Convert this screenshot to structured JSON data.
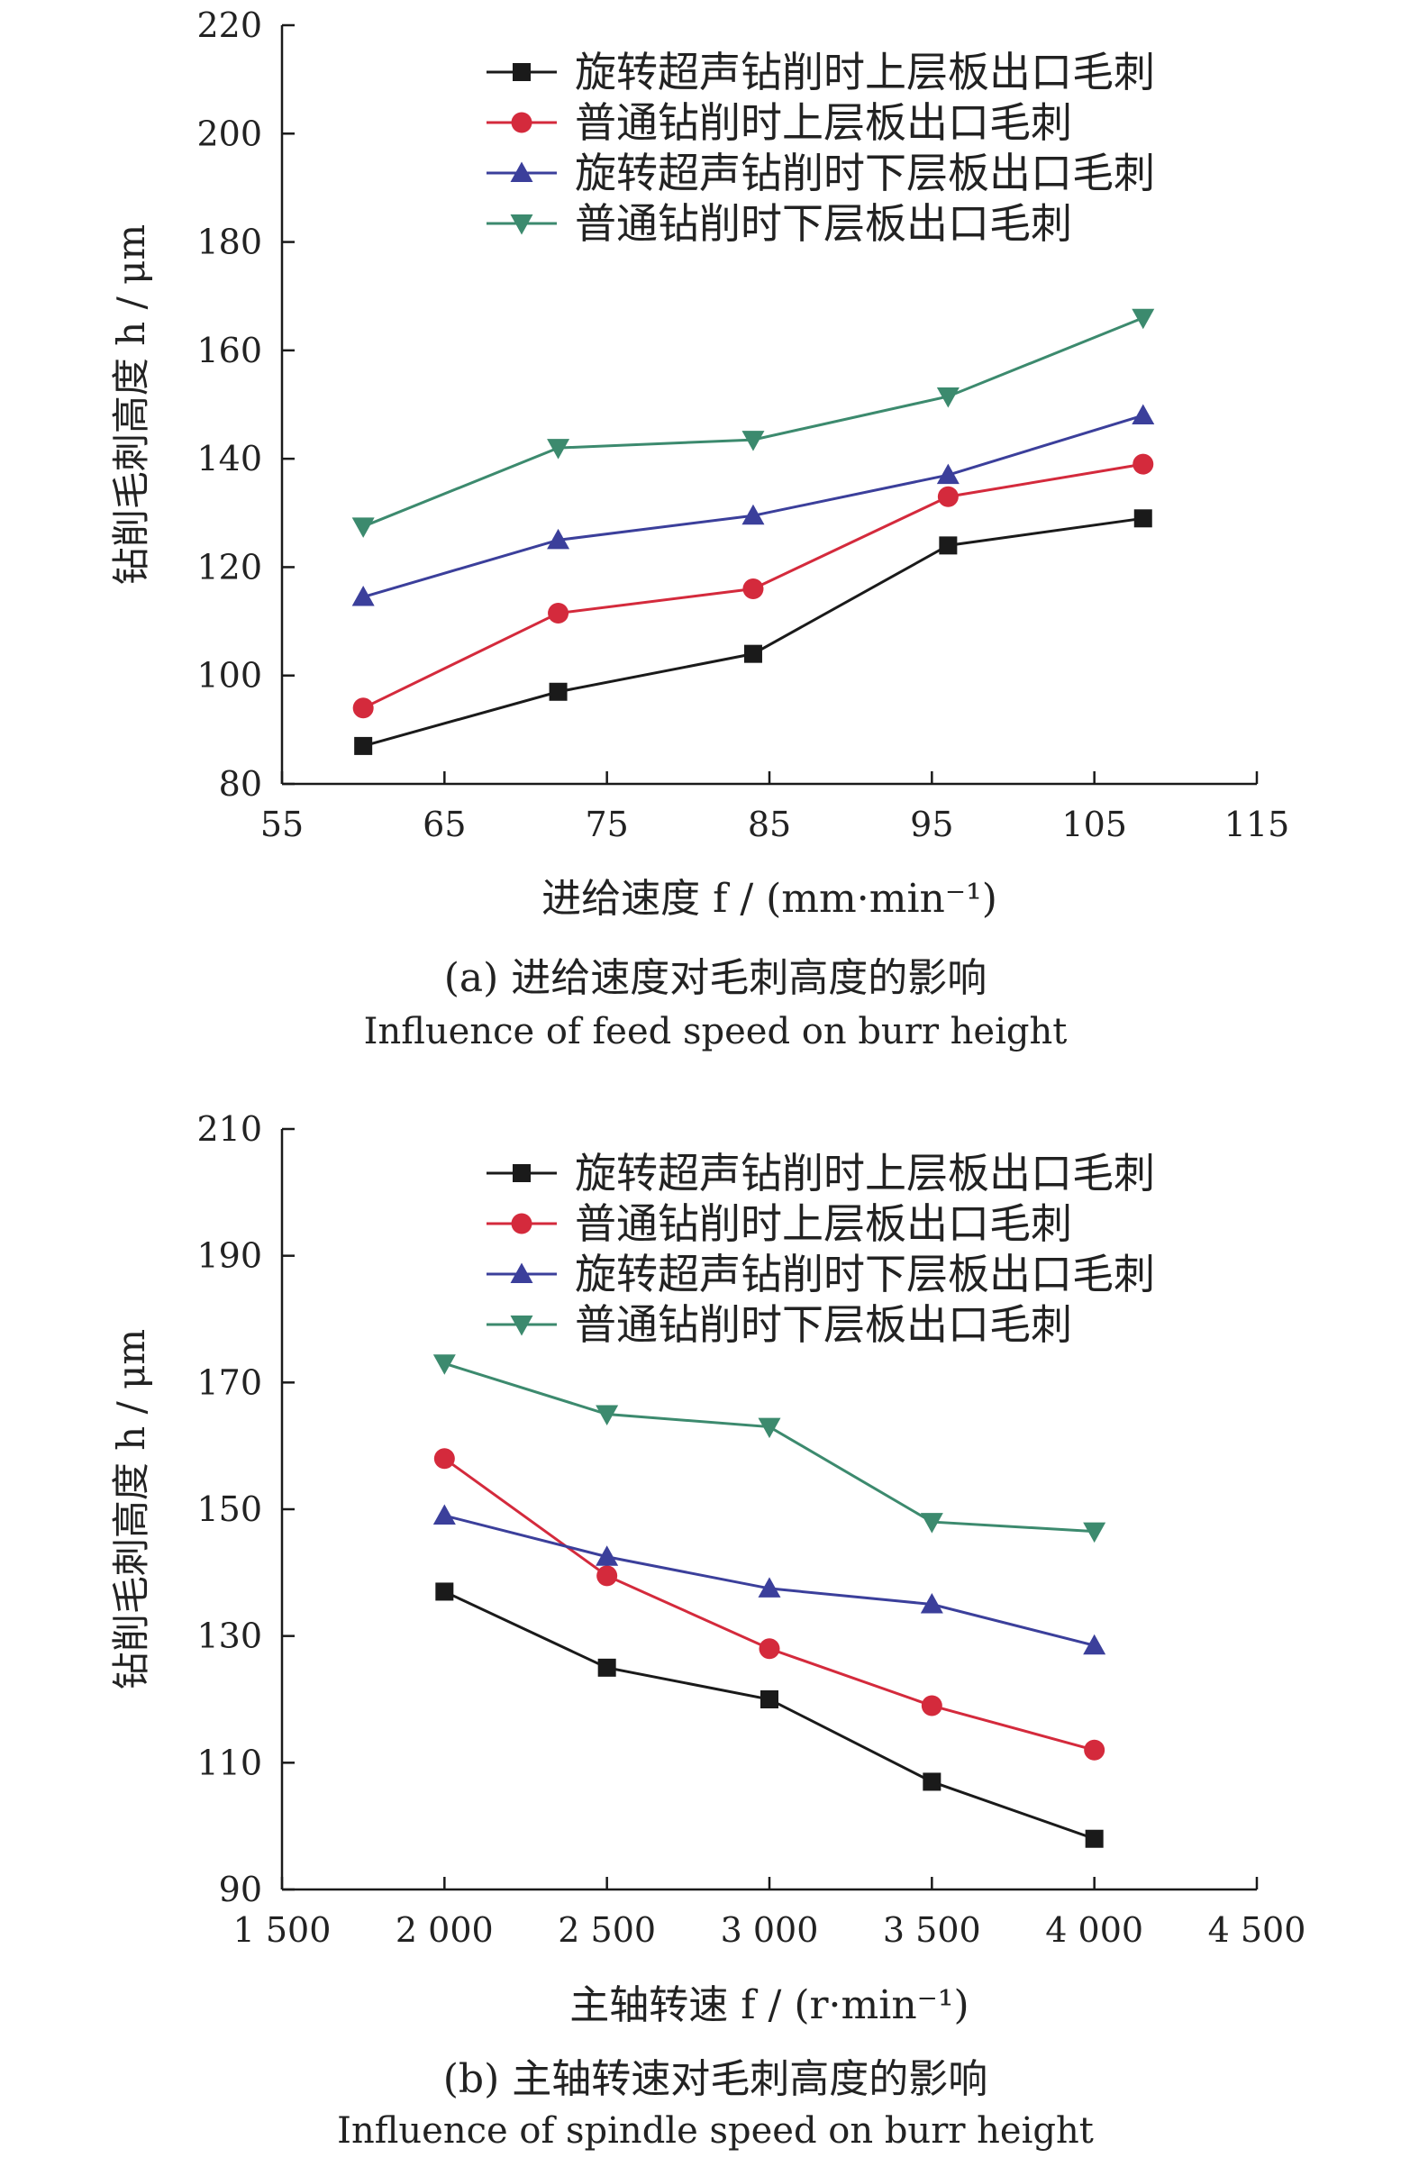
{
  "chart_data": [
    {
      "type": "line",
      "x": [
        60,
        72,
        84,
        96,
        108
      ],
      "xlim": [
        55,
        115
      ],
      "xticks": [
        55,
        65,
        75,
        85,
        95,
        105,
        115
      ],
      "xtick_labels": [
        "55",
        "65",
        "75",
        "85",
        "95",
        "105",
        "115"
      ],
      "ylim": [
        80,
        220
      ],
      "yticks": [
        80,
        100,
        120,
        140,
        160,
        180,
        200,
        220
      ],
      "ytick_labels": [
        "80",
        "100",
        "120",
        "140",
        "160",
        "180",
        "200",
        "220"
      ],
      "xlabel": "进给速度 f / (mm·min⁻¹)",
      "ylabel": "钻削毛刺高度 h / μm",
      "caption_cn": "(a) 进给速度对毛刺高度的影响",
      "caption_en": "Influence of feed speed on burr height",
      "legend_position": "top-right",
      "grid": false,
      "series": [
        {
          "name": "旋转超声钻削时上层板出口毛刺",
          "marker": "square",
          "color": "#1a1a1a",
          "values": [
            87,
            97,
            104,
            124,
            129
          ]
        },
        {
          "name": "普通钻削时上层板出口毛刺",
          "marker": "circle",
          "color": "#d42a3c",
          "values": [
            94,
            111.5,
            116,
            133,
            139
          ]
        },
        {
          "name": "旋转超声钻削时下层板出口毛刺",
          "marker": "triangle-up",
          "color": "#3b3f9b",
          "values": [
            114.5,
            125,
            129.5,
            137,
            148
          ]
        },
        {
          "name": "普通钻削时下层板出口毛刺",
          "marker": "triangle-down",
          "color": "#3c8a6e",
          "values": [
            127.5,
            142,
            143.5,
            151.5,
            166
          ]
        }
      ]
    },
    {
      "type": "line",
      "x": [
        2000,
        2500,
        3000,
        3500,
        4000
      ],
      "xlim": [
        1500,
        4500
      ],
      "xticks": [
        1500,
        2000,
        2500,
        3000,
        3500,
        4000,
        4500
      ],
      "xtick_labels": [
        "1 500",
        "2 000",
        "2 500",
        "3 000",
        "3 500",
        "4 000",
        "4 500"
      ],
      "ylim": [
        90,
        210
      ],
      "yticks": [
        90,
        110,
        130,
        150,
        170,
        190,
        210
      ],
      "ytick_labels": [
        "90",
        "110",
        "130",
        "150",
        "170",
        "190",
        "210"
      ],
      "xlabel": "主轴转速 f / (r·min⁻¹)",
      "ylabel": "钻削毛刺高度 h / μm",
      "caption_cn": "(b) 主轴转速对毛刺高度的影响",
      "caption_en": "Influence of spindle speed on burr height",
      "legend_position": "top-right",
      "grid": false,
      "series": [
        {
          "name": "旋转超声钻削时上层板出口毛刺",
          "marker": "square",
          "color": "#1a1a1a",
          "values": [
            137,
            125,
            120,
            107,
            98
          ]
        },
        {
          "name": "普通钻削时上层板出口毛刺",
          "marker": "circle",
          "color": "#d42a3c",
          "values": [
            158,
            139.5,
            128,
            119,
            112
          ]
        },
        {
          "name": "旋转超声钻削时下层板出口毛刺",
          "marker": "triangle-up",
          "color": "#3b3f9b",
          "values": [
            149,
            142.5,
            137.5,
            135,
            128.5
          ]
        },
        {
          "name": "普通钻削时下层板出口毛刺",
          "marker": "triangle-down",
          "color": "#3c8a6e",
          "values": [
            173,
            165,
            163,
            148,
            146.5
          ]
        }
      ]
    }
  ]
}
